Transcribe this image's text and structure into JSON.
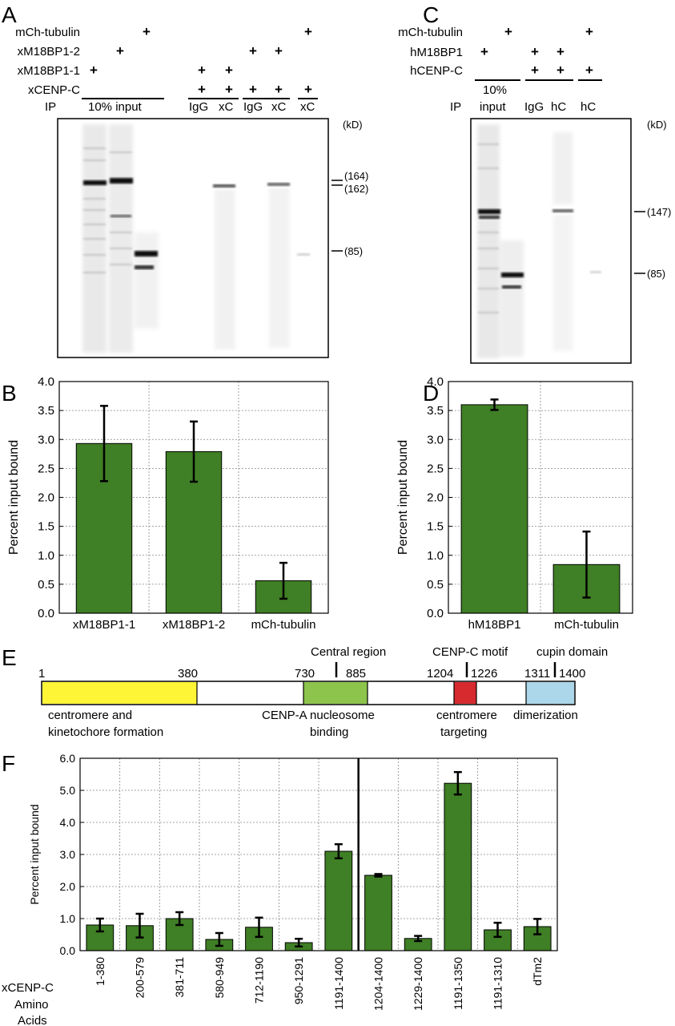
{
  "panel_labels": [
    "A",
    "B",
    "C",
    "D",
    "E",
    "F"
  ],
  "panelA": {
    "rows": [
      {
        "label": "mCh-tubulin",
        "plus": [
          false,
          false,
          true,
          false,
          false,
          false,
          false,
          true
        ]
      },
      {
        "label": "xM18BP1-2",
        "plus": [
          false,
          true,
          false,
          false,
          false,
          true,
          true,
          false
        ]
      },
      {
        "label": "xM18BP1-1",
        "plus": [
          true,
          false,
          false,
          true,
          true,
          false,
          false,
          false
        ]
      },
      {
        "label": "xCENP-C",
        "plus": [
          false,
          false,
          false,
          true,
          true,
          true,
          true,
          true
        ]
      }
    ],
    "plus_symbol": "+",
    "ip_label": "IP",
    "input_label": "10% input",
    "ip_lanes": [
      "IgG",
      "xC",
      "IgG",
      "xC",
      "xC"
    ],
    "kd_label": "(kD)",
    "markers": [
      "(164)",
      "(162)",
      "(85)"
    ]
  },
  "panelC": {
    "rows": [
      {
        "label": "mCh-tubulin",
        "plus": [
          false,
          true,
          false,
          false,
          true
        ]
      },
      {
        "label": "hM18BP1",
        "plus": [
          true,
          false,
          true,
          true,
          false
        ]
      },
      {
        "label": "hCENP-C",
        "plus": [
          false,
          false,
          true,
          true,
          true
        ]
      }
    ],
    "plus_symbol": "+",
    "ip_label": "IP",
    "input_label_line1": "10%",
    "input_label_line2": "input",
    "ip_lanes": [
      "IgG",
      "hC",
      "hC"
    ],
    "kd_label": "(kD)",
    "markers": [
      "(147)",
      "(85)"
    ]
  },
  "panelE": {
    "region_labels": {
      "central": "Central region",
      "cenpc_motif": "CENP-C motif",
      "cupin": "cupin domain"
    },
    "positions": [
      "1",
      "380",
      "730",
      "885",
      "1204",
      "1226",
      "1311",
      "1400"
    ],
    "domain_colors": {
      "yellow": "#fef536",
      "green": "#8cc44c",
      "red": "#d62a2f",
      "blue": "#acd6e9"
    },
    "functions": {
      "yellow_line1": "centromere and",
      "yellow_line2": "kinetochore formation",
      "green_line1": "CENP-A nucleosome",
      "green_line2": "binding",
      "red_line1": "centromere",
      "red_line2": "targeting",
      "blue_line1": "dimerization"
    }
  },
  "panelF": {
    "row_label_line1": "xCENP-C",
    "row_label_line2": "Amino",
    "row_label_line3": "Acids"
  },
  "chart_data": [
    {
      "type": "bar",
      "panel": "B",
      "categories": [
        "xM18BP1-1",
        "xM18BP1-2",
        "mCh-tubulin"
      ],
      "values": [
        2.93,
        2.79,
        0.56
      ],
      "errors": [
        0.65,
        0.52,
        0.31
      ],
      "ylabel": "Percent input bound",
      "ylim": [
        0,
        4.0
      ],
      "yticks": [
        "0.0",
        "0.5",
        "1.0",
        "1.5",
        "2.0",
        "2.5",
        "3.0",
        "3.5",
        "4.0"
      ],
      "bar_color": "#3f7f25",
      "grid": true
    },
    {
      "type": "bar",
      "panel": "D",
      "categories": [
        "hM18BP1",
        "mCh-tubulin"
      ],
      "values": [
        3.6,
        0.84
      ],
      "errors": [
        0.09,
        0.57
      ],
      "ylabel": "Percent input bound",
      "ylim": [
        0,
        4.0
      ],
      "yticks": [
        "0.0",
        "0.5",
        "1.0",
        "1.5",
        "2.0",
        "2.5",
        "3.0",
        "3.5",
        "4.0"
      ],
      "bar_color": "#3f7f25",
      "grid": true
    },
    {
      "type": "bar",
      "panel": "F",
      "categories": [
        "1-380",
        "200-579",
        "381-711",
        "580-949",
        "712-1190",
        "950-1291",
        "1191-1400",
        "1204-1400",
        "1229-1400",
        "1191-1350",
        "1191-1310",
        "dTm2"
      ],
      "values": [
        0.8,
        0.78,
        1.0,
        0.35,
        0.73,
        0.25,
        3.1,
        2.35,
        0.38,
        5.22,
        0.65,
        0.75
      ],
      "errors": [
        0.2,
        0.37,
        0.2,
        0.2,
        0.3,
        0.12,
        0.22,
        0.04,
        0.08,
        0.35,
        0.22,
        0.24
      ],
      "ylabel": "Percent input bound",
      "ylim": [
        0,
        6.0
      ],
      "yticks": [
        "0.0",
        "1.0",
        "2.0",
        "3.0",
        "4.0",
        "5.0",
        "6.0"
      ],
      "bar_color": "#3f7f25",
      "grid": true
    }
  ]
}
